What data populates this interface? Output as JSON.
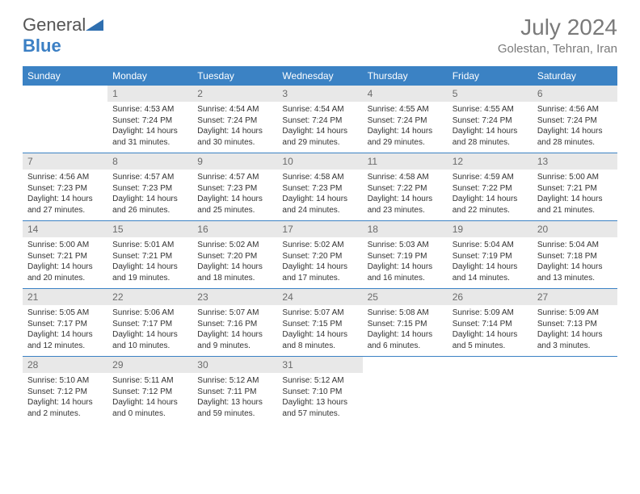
{
  "logo": {
    "text1": "General",
    "text2": "Blue"
  },
  "monthTitle": "July 2024",
  "location": "Golestan, Tehran, Iran",
  "colors": {
    "headerBar": "#3b82c4",
    "headerText": "#ffffff",
    "dayNumBg": "#e8e8e8",
    "dayNumText": "#6b6b6b",
    "bodyText": "#333333",
    "ruleLine": "#3b82c4",
    "titleText": "#7a7a7a"
  },
  "dayNames": [
    "Sunday",
    "Monday",
    "Tuesday",
    "Wednesday",
    "Thursday",
    "Friday",
    "Saturday"
  ],
  "weeks": [
    [
      {
        "day": "",
        "sunrise": "",
        "sunset": "",
        "daylight": ""
      },
      {
        "day": "1",
        "sunrise": "Sunrise: 4:53 AM",
        "sunset": "Sunset: 7:24 PM",
        "daylight": "Daylight: 14 hours and 31 minutes."
      },
      {
        "day": "2",
        "sunrise": "Sunrise: 4:54 AM",
        "sunset": "Sunset: 7:24 PM",
        "daylight": "Daylight: 14 hours and 30 minutes."
      },
      {
        "day": "3",
        "sunrise": "Sunrise: 4:54 AM",
        "sunset": "Sunset: 7:24 PM",
        "daylight": "Daylight: 14 hours and 29 minutes."
      },
      {
        "day": "4",
        "sunrise": "Sunrise: 4:55 AM",
        "sunset": "Sunset: 7:24 PM",
        "daylight": "Daylight: 14 hours and 29 minutes."
      },
      {
        "day": "5",
        "sunrise": "Sunrise: 4:55 AM",
        "sunset": "Sunset: 7:24 PM",
        "daylight": "Daylight: 14 hours and 28 minutes."
      },
      {
        "day": "6",
        "sunrise": "Sunrise: 4:56 AM",
        "sunset": "Sunset: 7:24 PM",
        "daylight": "Daylight: 14 hours and 28 minutes."
      }
    ],
    [
      {
        "day": "7",
        "sunrise": "Sunrise: 4:56 AM",
        "sunset": "Sunset: 7:23 PM",
        "daylight": "Daylight: 14 hours and 27 minutes."
      },
      {
        "day": "8",
        "sunrise": "Sunrise: 4:57 AM",
        "sunset": "Sunset: 7:23 PM",
        "daylight": "Daylight: 14 hours and 26 minutes."
      },
      {
        "day": "9",
        "sunrise": "Sunrise: 4:57 AM",
        "sunset": "Sunset: 7:23 PM",
        "daylight": "Daylight: 14 hours and 25 minutes."
      },
      {
        "day": "10",
        "sunrise": "Sunrise: 4:58 AM",
        "sunset": "Sunset: 7:23 PM",
        "daylight": "Daylight: 14 hours and 24 minutes."
      },
      {
        "day": "11",
        "sunrise": "Sunrise: 4:58 AM",
        "sunset": "Sunset: 7:22 PM",
        "daylight": "Daylight: 14 hours and 23 minutes."
      },
      {
        "day": "12",
        "sunrise": "Sunrise: 4:59 AM",
        "sunset": "Sunset: 7:22 PM",
        "daylight": "Daylight: 14 hours and 22 minutes."
      },
      {
        "day": "13",
        "sunrise": "Sunrise: 5:00 AM",
        "sunset": "Sunset: 7:21 PM",
        "daylight": "Daylight: 14 hours and 21 minutes."
      }
    ],
    [
      {
        "day": "14",
        "sunrise": "Sunrise: 5:00 AM",
        "sunset": "Sunset: 7:21 PM",
        "daylight": "Daylight: 14 hours and 20 minutes."
      },
      {
        "day": "15",
        "sunrise": "Sunrise: 5:01 AM",
        "sunset": "Sunset: 7:21 PM",
        "daylight": "Daylight: 14 hours and 19 minutes."
      },
      {
        "day": "16",
        "sunrise": "Sunrise: 5:02 AM",
        "sunset": "Sunset: 7:20 PM",
        "daylight": "Daylight: 14 hours and 18 minutes."
      },
      {
        "day": "17",
        "sunrise": "Sunrise: 5:02 AM",
        "sunset": "Sunset: 7:20 PM",
        "daylight": "Daylight: 14 hours and 17 minutes."
      },
      {
        "day": "18",
        "sunrise": "Sunrise: 5:03 AM",
        "sunset": "Sunset: 7:19 PM",
        "daylight": "Daylight: 14 hours and 16 minutes."
      },
      {
        "day": "19",
        "sunrise": "Sunrise: 5:04 AM",
        "sunset": "Sunset: 7:19 PM",
        "daylight": "Daylight: 14 hours and 14 minutes."
      },
      {
        "day": "20",
        "sunrise": "Sunrise: 5:04 AM",
        "sunset": "Sunset: 7:18 PM",
        "daylight": "Daylight: 14 hours and 13 minutes."
      }
    ],
    [
      {
        "day": "21",
        "sunrise": "Sunrise: 5:05 AM",
        "sunset": "Sunset: 7:17 PM",
        "daylight": "Daylight: 14 hours and 12 minutes."
      },
      {
        "day": "22",
        "sunrise": "Sunrise: 5:06 AM",
        "sunset": "Sunset: 7:17 PM",
        "daylight": "Daylight: 14 hours and 10 minutes."
      },
      {
        "day": "23",
        "sunrise": "Sunrise: 5:07 AM",
        "sunset": "Sunset: 7:16 PM",
        "daylight": "Daylight: 14 hours and 9 minutes."
      },
      {
        "day": "24",
        "sunrise": "Sunrise: 5:07 AM",
        "sunset": "Sunset: 7:15 PM",
        "daylight": "Daylight: 14 hours and 8 minutes."
      },
      {
        "day": "25",
        "sunrise": "Sunrise: 5:08 AM",
        "sunset": "Sunset: 7:15 PM",
        "daylight": "Daylight: 14 hours and 6 minutes."
      },
      {
        "day": "26",
        "sunrise": "Sunrise: 5:09 AM",
        "sunset": "Sunset: 7:14 PM",
        "daylight": "Daylight: 14 hours and 5 minutes."
      },
      {
        "day": "27",
        "sunrise": "Sunrise: 5:09 AM",
        "sunset": "Sunset: 7:13 PM",
        "daylight": "Daylight: 14 hours and 3 minutes."
      }
    ],
    [
      {
        "day": "28",
        "sunrise": "Sunrise: 5:10 AM",
        "sunset": "Sunset: 7:12 PM",
        "daylight": "Daylight: 14 hours and 2 minutes."
      },
      {
        "day": "29",
        "sunrise": "Sunrise: 5:11 AM",
        "sunset": "Sunset: 7:12 PM",
        "daylight": "Daylight: 14 hours and 0 minutes."
      },
      {
        "day": "30",
        "sunrise": "Sunrise: 5:12 AM",
        "sunset": "Sunset: 7:11 PM",
        "daylight": "Daylight: 13 hours and 59 minutes."
      },
      {
        "day": "31",
        "sunrise": "Sunrise: 5:12 AM",
        "sunset": "Sunset: 7:10 PM",
        "daylight": "Daylight: 13 hours and 57 minutes."
      },
      {
        "day": "",
        "sunrise": "",
        "sunset": "",
        "daylight": ""
      },
      {
        "day": "",
        "sunrise": "",
        "sunset": "",
        "daylight": ""
      },
      {
        "day": "",
        "sunrise": "",
        "sunset": "",
        "daylight": ""
      }
    ]
  ]
}
